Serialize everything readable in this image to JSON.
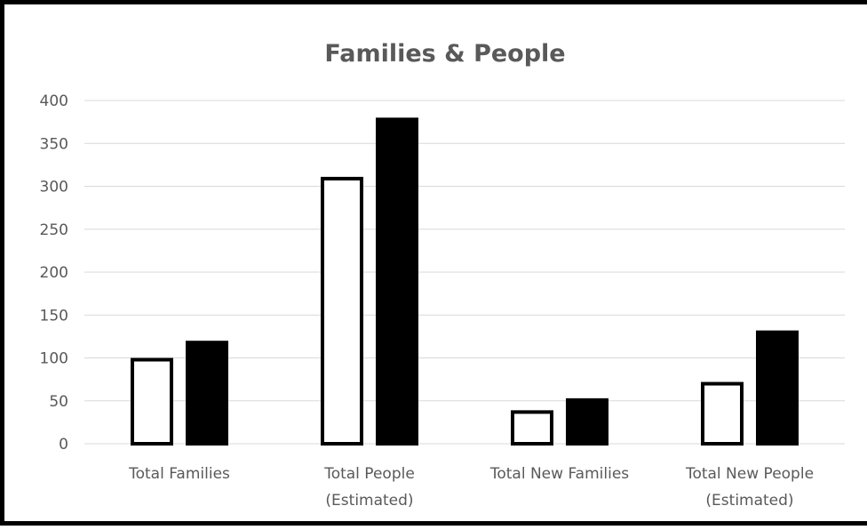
{
  "chart_data": {
    "type": "bar",
    "title": "Families & People",
    "categories": [
      [
        "Total Families"
      ],
      [
        "Total People",
        "(Estimated)"
      ],
      [
        "Total New Families"
      ],
      [
        "Total New People",
        "(Estimated)"
      ]
    ],
    "series": [
      {
        "values": [
          100,
          311,
          39,
          72
        ],
        "fill": "#ffffff",
        "stroke": "#000000"
      },
      {
        "values": [
          120,
          380,
          53,
          132
        ],
        "fill": "#000000",
        "stroke": "#000000"
      }
    ],
    "yticks": [
      0,
      50,
      100,
      150,
      200,
      250,
      300,
      350,
      400
    ],
    "ylim": [
      0,
      400
    ],
    "grid": true,
    "legend": "none"
  }
}
